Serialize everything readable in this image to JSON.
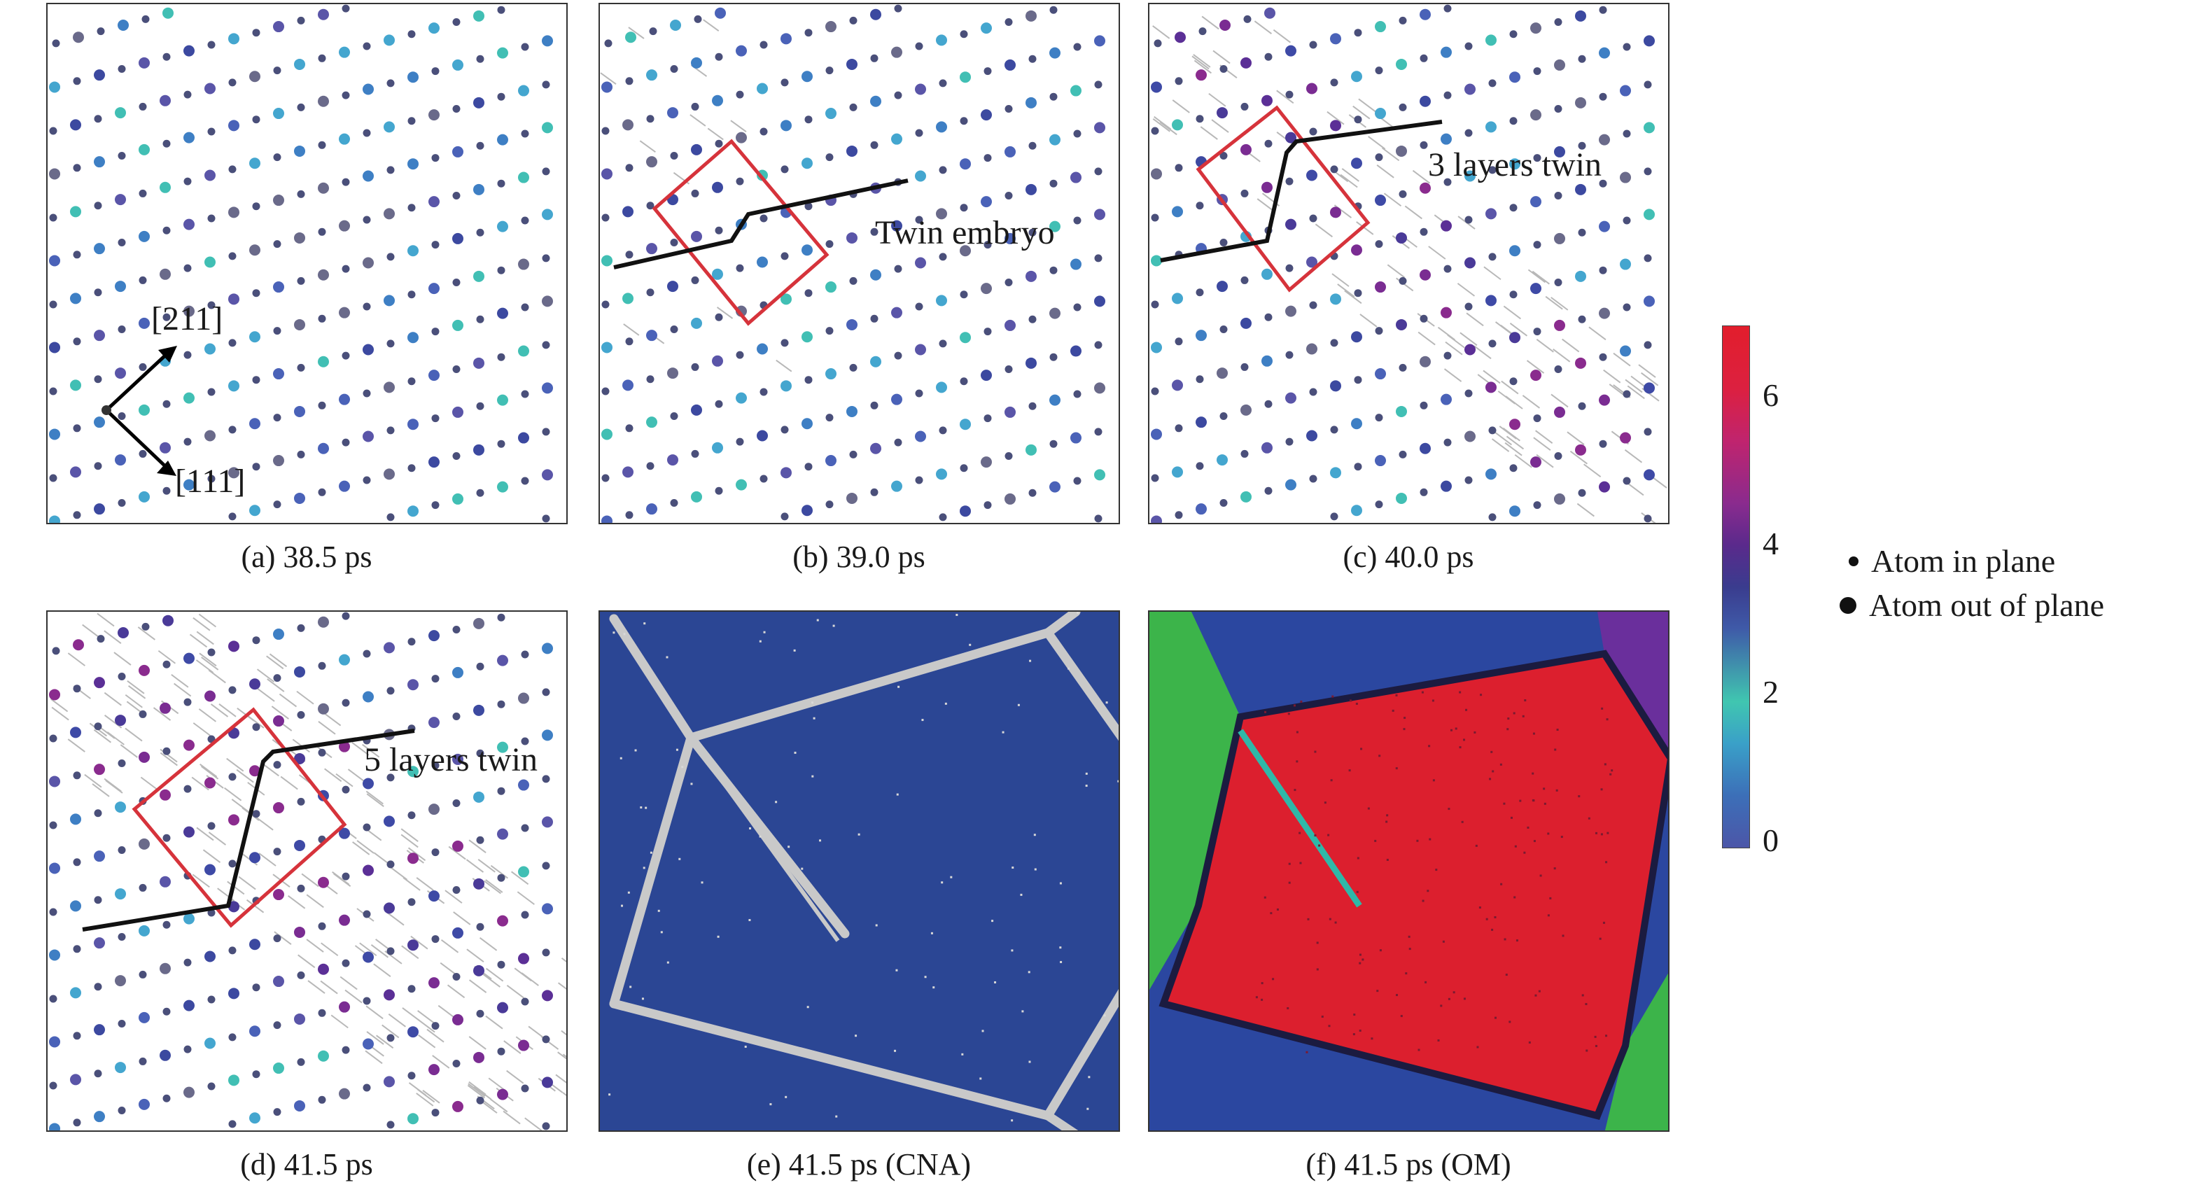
{
  "panels": [
    {
      "id": "a",
      "caption": "(a) 38.5 ps"
    },
    {
      "id": "b",
      "caption": "(b) 39.0 ps"
    },
    {
      "id": "c",
      "caption": "(c) 40.0 ps"
    },
    {
      "id": "d",
      "caption": "(d) 41.5 ps"
    },
    {
      "id": "e",
      "caption": "(e) 41.5 ps (CNA)"
    },
    {
      "id": "f",
      "caption": "(f) 41.5 ps (OM)"
    }
  ],
  "annotations": {
    "dir1": "[211]",
    "dir2": "[111]",
    "twin_embryo": "Twin embryo",
    "twin3": "3 layers twin",
    "twin5": "5 layers twin"
  },
  "colorbar": {
    "ticks": [
      "6",
      "4",
      "2",
      "0"
    ],
    "min": 0,
    "max": 7
  },
  "legend": {
    "in_plane": "Atom in plane",
    "out_plane": "Atom out of plane"
  },
  "colors": {
    "twin_box": "#d6333b",
    "cna_bg": "#2b4694",
    "cna_boundary": "#c9c9c9",
    "om_red": "#dc1f2e",
    "om_blue": "#2b47a0",
    "om_green": "#3cb44a",
    "om_purple": "#6a2f9c"
  }
}
